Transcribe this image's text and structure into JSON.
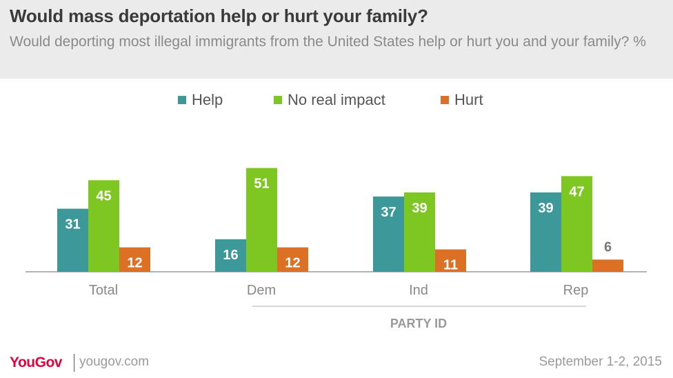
{
  "title": "Would mass deportation help or hurt your family?",
  "subtitle": "Would deporting most illegal immigrants from the United States help or hurt you and your family? %",
  "colors": {
    "help": "#3d9999",
    "no_impact": "#7ec621",
    "hurt": "#dc7025"
  },
  "chart_data": {
    "type": "bar",
    "categories": [
      "Total",
      "Dem",
      "Ind",
      "Rep"
    ],
    "series": [
      {
        "name": "Help",
        "values": [
          31,
          16,
          37,
          39
        ]
      },
      {
        "name": "No real impact",
        "values": [
          45,
          51,
          39,
          47
        ]
      },
      {
        "name": "Hurt",
        "values": [
          12,
          12,
          11,
          6
        ]
      }
    ],
    "group_label": "PARTY ID",
    "ylim": [
      0,
      55
    ],
    "legend": "top"
  },
  "footer": {
    "brand": "YouGov",
    "site": "yougov.com",
    "date": "September 1-2, 2015"
  }
}
